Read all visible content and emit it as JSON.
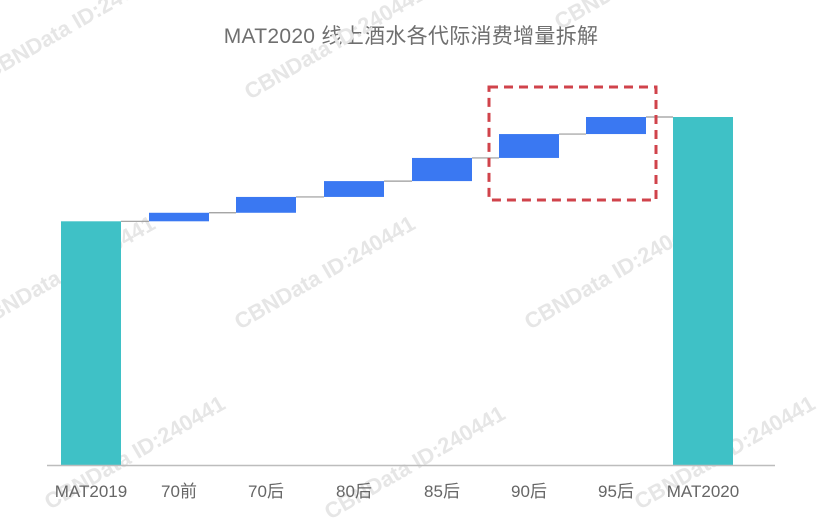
{
  "chart_data": {
    "type": "bar",
    "subtype": "waterfall",
    "title": "MAT2020 线上酒水各代际消费增量拆解",
    "categories": [
      "MAT2019",
      "70前",
      "70后",
      "80后",
      "85后",
      "90后",
      "95后",
      "MAT2020"
    ],
    "values": [
      100,
      3.5,
      6.5,
      6.5,
      9.5,
      9.8,
      7.0,
      142.8
    ],
    "bar_kind": [
      "total",
      "increase",
      "increase",
      "increase",
      "increase",
      "increase",
      "increase",
      "total"
    ],
    "ylim": [
      0,
      160
    ],
    "y_axis_visible": false,
    "grid": false,
    "highlight_categories": [
      "90后",
      "95后"
    ],
    "colors": {
      "total": "#3fc1c6",
      "increase": "#3a78f2",
      "connector": "#9a9a9a",
      "axis": "#bdbdbd",
      "highlight_box": "#d0434b",
      "label": "#666666"
    }
  },
  "watermark": "CBNData ID:240441"
}
